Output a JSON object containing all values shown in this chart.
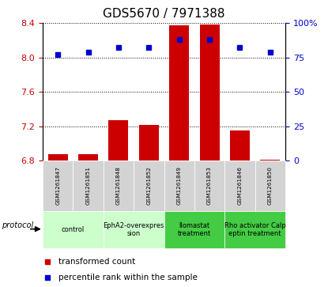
{
  "title": "GDS5670 / 7971388",
  "samples": [
    "GSM1261847",
    "GSM1261851",
    "GSM1261848",
    "GSM1261852",
    "GSM1261849",
    "GSM1261853",
    "GSM1261846",
    "GSM1261850"
  ],
  "transformed_count": [
    6.88,
    6.88,
    7.27,
    7.22,
    8.37,
    8.38,
    7.15,
    6.81
  ],
  "percentile_rank": [
    77,
    79,
    82,
    82,
    88,
    88,
    82,
    79
  ],
  "ylim_left": [
    6.8,
    8.4
  ],
  "ylim_right": [
    0,
    100
  ],
  "yticks_left": [
    6.8,
    7.2,
    7.6,
    8.0,
    8.4
  ],
  "yticks_right": [
    0,
    25,
    50,
    75,
    100
  ],
  "bar_color": "#cc0000",
  "dot_color": "#0000cc",
  "bar_bottom": 6.8,
  "groups": [
    {
      "label": "control",
      "samples": [
        0,
        1
      ],
      "color": "#ccffcc"
    },
    {
      "label": "EphA2-overexpres\nsion",
      "samples": [
        2,
        3
      ],
      "color": "#ccffcc"
    },
    {
      "label": "llomastat\ntreatment",
      "samples": [
        4,
        5
      ],
      "color": "#44cc44"
    },
    {
      "label": "Rho activator Calp\neptin treatment",
      "samples": [
        6,
        7
      ],
      "color": "#44cc44"
    }
  ],
  "legend_bar_label": "transformed count",
  "legend_dot_label": "percentile rank within the sample",
  "protocol_label": "protocol",
  "bar_color_red": "#cc0000",
  "dot_color_blue": "#0000cc"
}
